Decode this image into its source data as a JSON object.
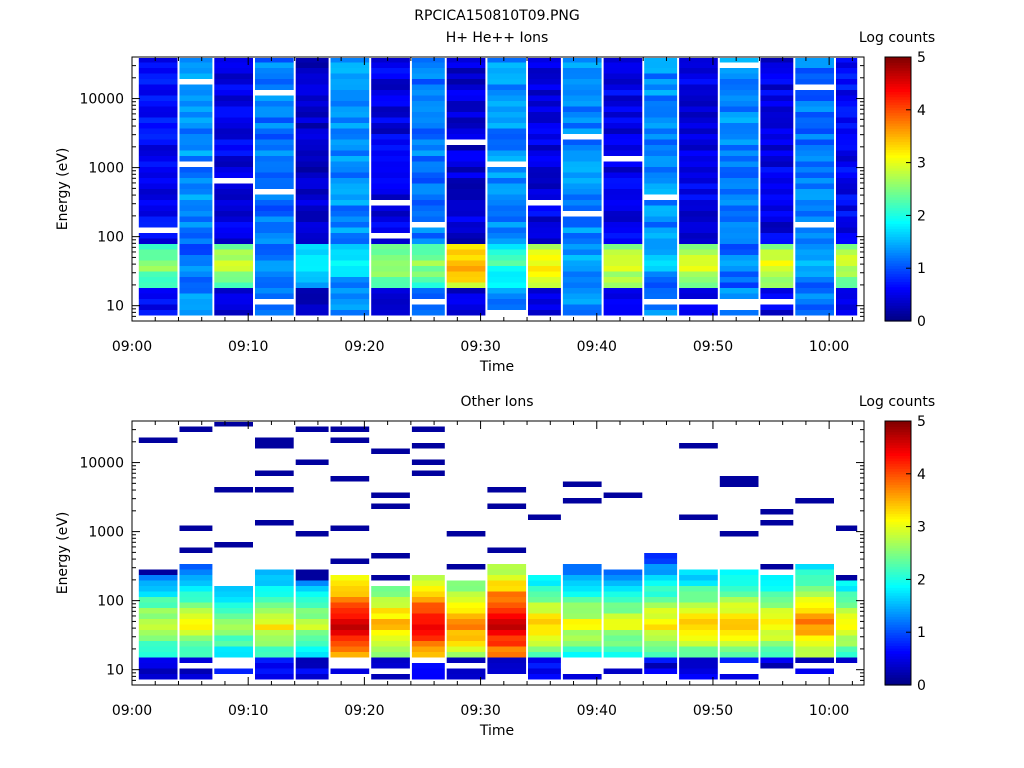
{
  "filename": "RPCICA150810T09.PNG",
  "colorbar": {
    "label": "Log counts",
    "min": 0,
    "max": 5,
    "ticks": [
      "0",
      "1",
      "2",
      "3",
      "4",
      "5"
    ]
  },
  "chart_data": [
    {
      "type": "heatmap",
      "title": "H+ He++ Ions",
      "xlabel": "Time",
      "ylabel": "Energy (eV)",
      "x_tick_labels": [
        "09:00",
        "09:10",
        "09:20",
        "09:30",
        "09:40",
        "09:50",
        "10:00"
      ],
      "x_range": [
        "09:00",
        "10:03"
      ],
      "y_tick_labels": [
        "10",
        "100",
        "1000",
        "10000"
      ],
      "y_scale": "log",
      "y_range": [
        6,
        40000
      ],
      "time_bins": [
        "09:00.5",
        "09:04",
        "09:07",
        "09:10.5",
        "09:14",
        "09:17",
        "09:20.5",
        "09:24",
        "09:27",
        "09:30.5",
        "09:34",
        "09:37",
        "09:40.5",
        "09:44",
        "09:47",
        "09:50.5",
        "09:54",
        "09:57",
        "10:00.5"
      ],
      "description_of_values": "Log counts per time bin: background level at high energy (>100 eV), peak level in 20-80 eV band",
      "background_log_counts": [
        0.6,
        1.3,
        0.5,
        1.2,
        0.4,
        1.3,
        0.5,
        1.2,
        0.4,
        1.3,
        0.5,
        1.3,
        0.5,
        1.3,
        0.5,
        1.3,
        0.5,
        1.2,
        0.6
      ],
      "peak_log_counts_20_80eV": [
        2.6,
        1.4,
        2.8,
        1.5,
        2.0,
        1.8,
        2.8,
        2.6,
        3.5,
        2.2,
        3.2,
        1.6,
        3.0,
        1.6,
        3.0,
        1.4,
        3.0,
        1.6,
        2.9
      ],
      "grid": false
    },
    {
      "type": "heatmap",
      "title": "Other Ions",
      "xlabel": "Time",
      "ylabel": "Energy (eV)",
      "x_tick_labels": [
        "09:00",
        "09:10",
        "09:20",
        "09:30",
        "09:40",
        "09:50",
        "10:00"
      ],
      "x_range": [
        "09:00",
        "10:03"
      ],
      "y_tick_labels": [
        "10",
        "100",
        "1000",
        "10000"
      ],
      "y_scale": "log",
      "y_range": [
        6,
        40000
      ],
      "time_bins": [
        "09:00.5",
        "09:04",
        "09:07",
        "09:10.5",
        "09:14",
        "09:17",
        "09:20.5",
        "09:24",
        "09:27",
        "09:30.5",
        "09:34",
        "09:37",
        "09:40.5",
        "09:44",
        "09:47",
        "09:50.5",
        "09:54",
        "09:57",
        "10:00.5"
      ],
      "peak_log_counts_20_80eV": [
        3.0,
        3.1,
        2.8,
        3.2,
        2.9,
        4.6,
        3.6,
        4.5,
        3.8,
        4.7,
        3.4,
        3.1,
        3.0,
        3.3,
        3.4,
        3.5,
        3.3,
        3.8,
        3.2
      ],
      "upper_edge_eV": [
        230,
        320,
        160,
        300,
        190,
        250,
        160,
        230,
        210,
        350,
        250,
        330,
        300,
        520,
        260,
        280,
        250,
        360,
        210
      ],
      "grid": false
    }
  ]
}
